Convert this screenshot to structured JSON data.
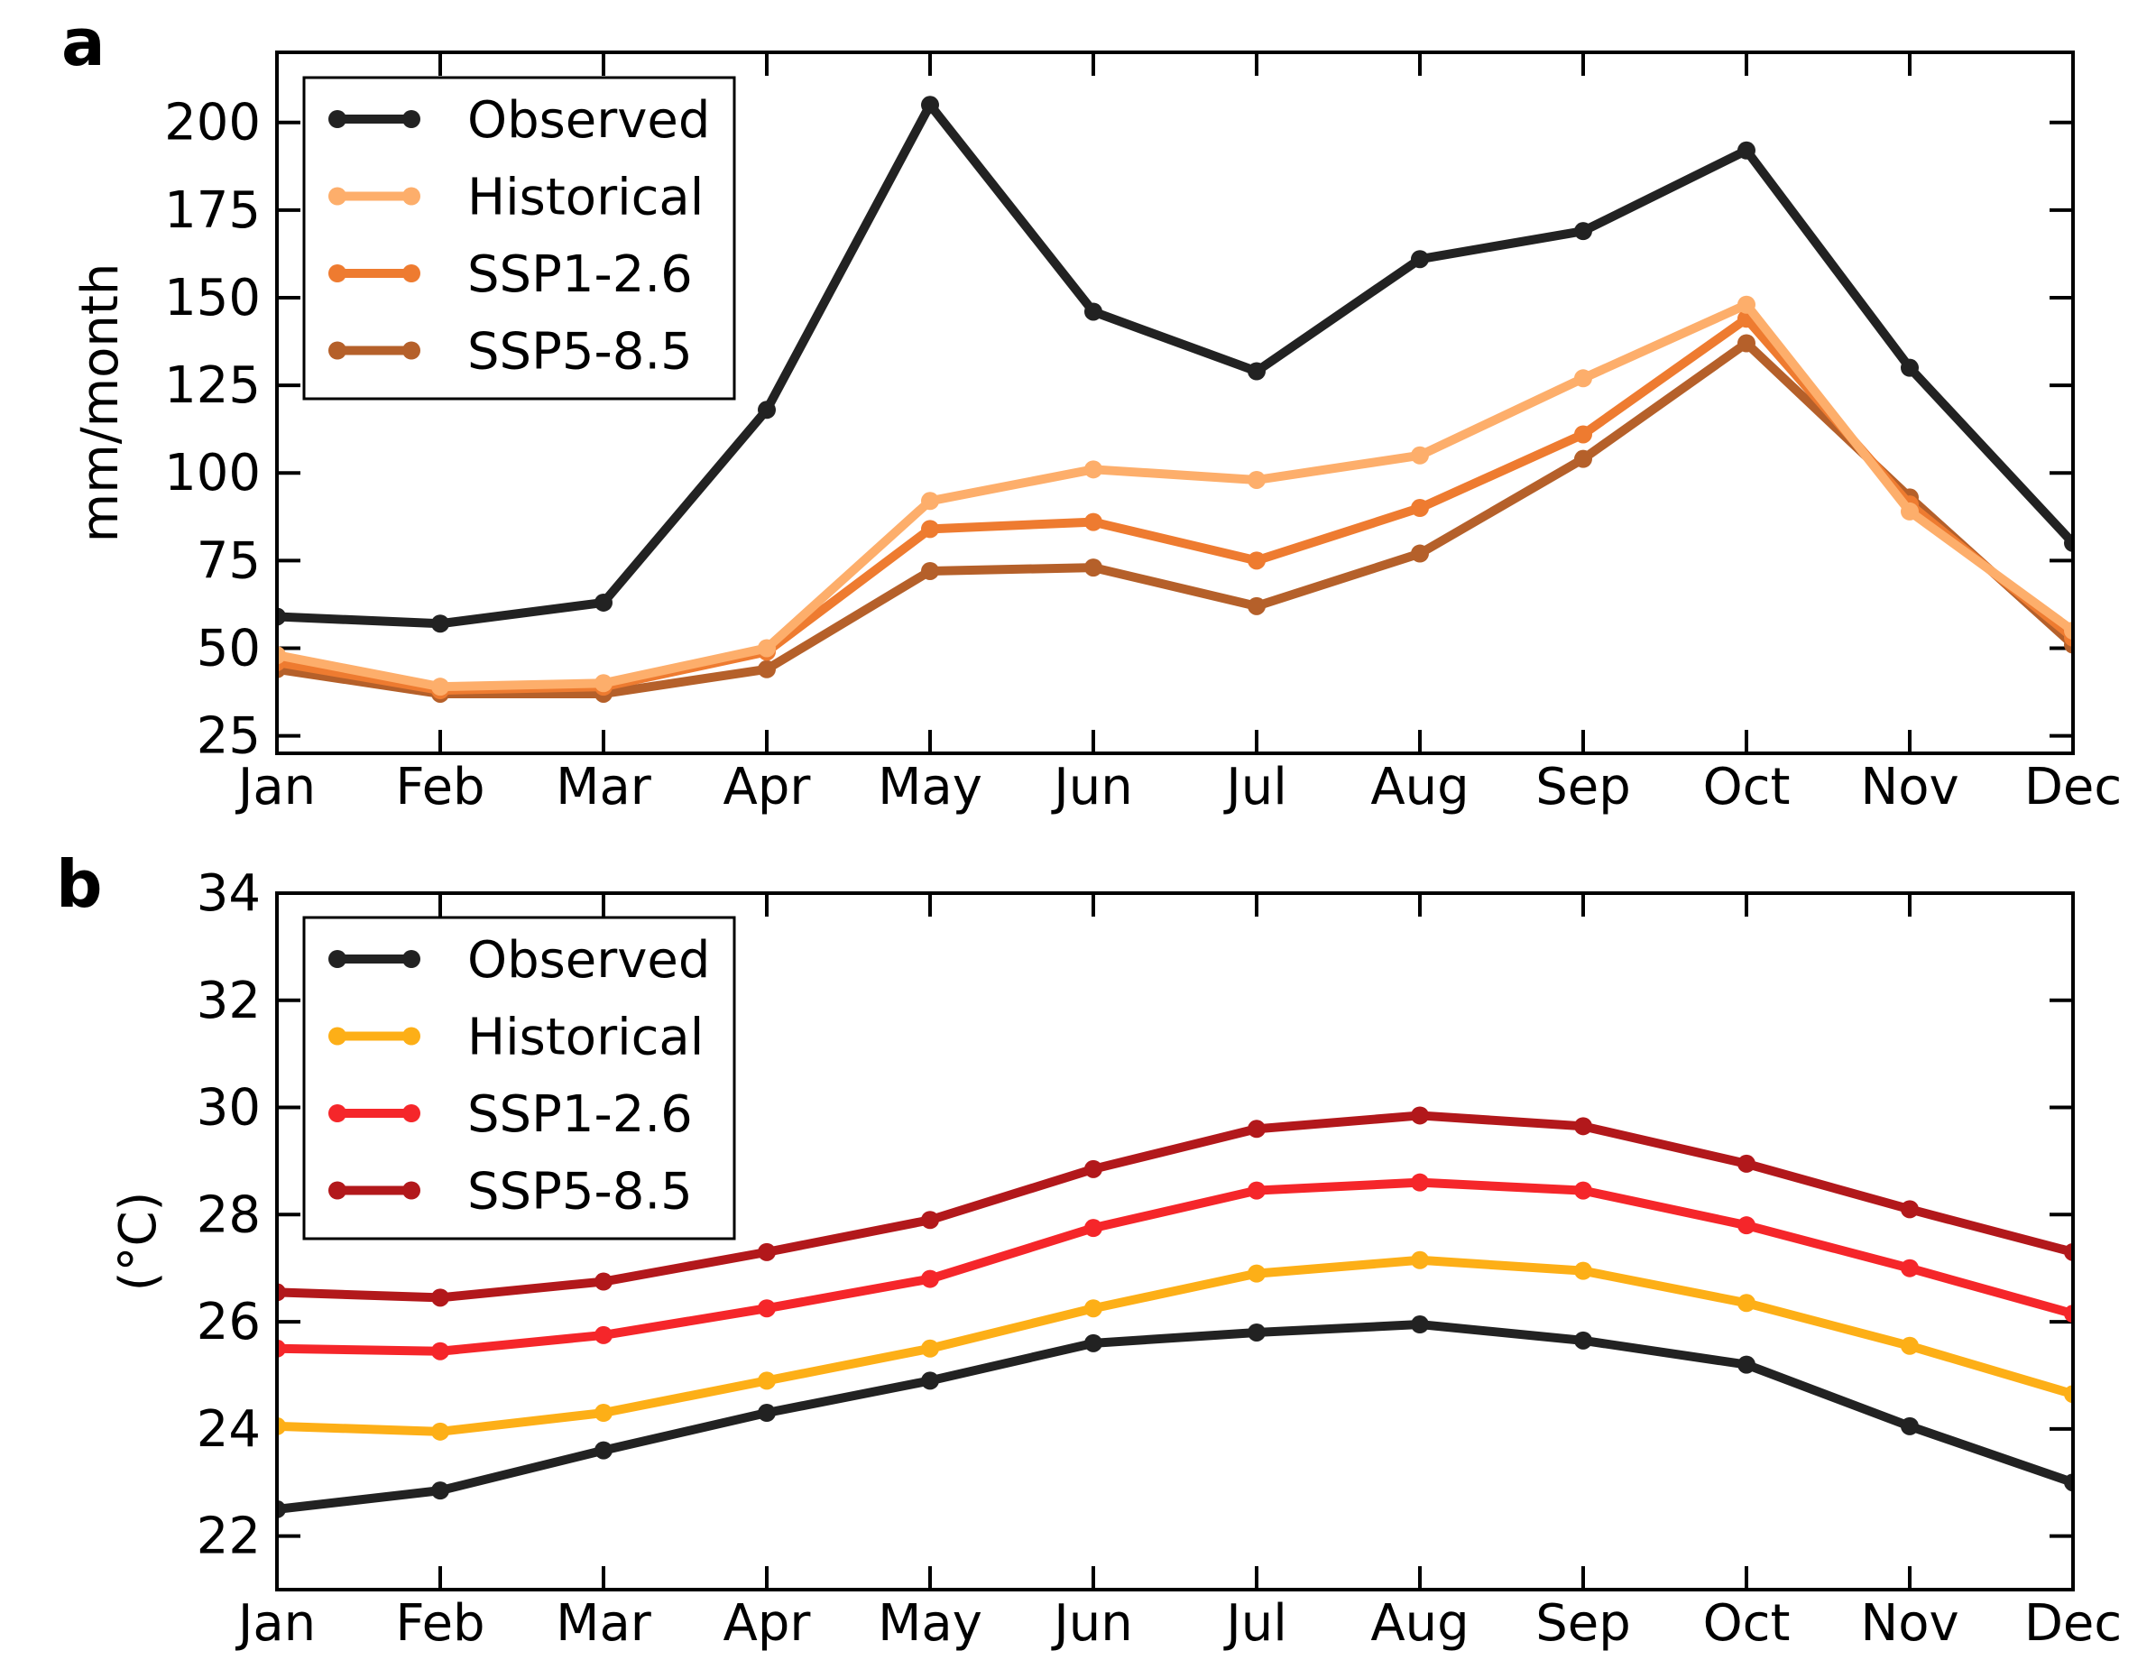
{
  "chart_data": [
    {
      "panel_label": "a",
      "type": "line",
      "title": "",
      "xlabel": "",
      "ylabel": "mm/month",
      "categories": [
        "Jan",
        "Feb",
        "Mar",
        "Apr",
        "May",
        "Jun",
        "Jul",
        "Aug",
        "Sep",
        "Oct",
        "Nov",
        "Dec"
      ],
      "ylim": [
        20,
        220
      ],
      "yticks": [
        25,
        50,
        75,
        100,
        125,
        150,
        175,
        200
      ],
      "ytick_labels": [
        "25",
        "50",
        "75",
        "100",
        "125",
        "150",
        "175",
        "200"
      ],
      "grid": false,
      "legend_position": "top-left",
      "series": [
        {
          "name": "Observed",
          "color": "#222222",
          "values": [
            59,
            57,
            63,
            118,
            205,
            146,
            129,
            161,
            169,
            192,
            130,
            80
          ]
        },
        {
          "name": "Historical",
          "color": "#FDAE6B",
          "values": [
            48,
            39,
            40,
            50,
            92,
            101,
            98,
            105,
            127,
            148,
            89,
            55
          ]
        },
        {
          "name": "SSP1-2.6",
          "color": "#EE7B30",
          "values": [
            46,
            38,
            39,
            49,
            84,
            86,
            75,
            90,
            111,
            144,
            91,
            53
          ]
        },
        {
          "name": "SSP5-8.5",
          "color": "#B5602A",
          "values": [
            44,
            37,
            37,
            44,
            72,
            73,
            62,
            77,
            104,
            137,
            93,
            51
          ]
        }
      ]
    },
    {
      "panel_label": "b",
      "type": "line",
      "title": "",
      "xlabel": "",
      "ylabel": "(°C)",
      "categories": [
        "Jan",
        "Feb",
        "Mar",
        "Apr",
        "May",
        "Jun",
        "Jul",
        "Aug",
        "Sep",
        "Oct",
        "Nov",
        "Dec"
      ],
      "ylim": [
        21,
        34
      ],
      "yticks": [
        22,
        24,
        26,
        28,
        30,
        32,
        34
      ],
      "ytick_labels": [
        "22",
        "24",
        "26",
        "28",
        "30",
        "32",
        "34"
      ],
      "grid": false,
      "legend_position": "top-left",
      "series": [
        {
          "name": "Observed",
          "color": "#222222",
          "values": [
            22.5,
            22.85,
            23.6,
            24.3,
            24.9,
            25.6,
            25.8,
            25.95,
            25.65,
            25.2,
            24.05,
            23.0
          ]
        },
        {
          "name": "Historical",
          "color": "#FDAF17",
          "values": [
            24.05,
            23.95,
            24.3,
            24.9,
            25.5,
            26.25,
            26.9,
            27.15,
            26.95,
            26.35,
            25.55,
            24.65
          ]
        },
        {
          "name": "SSP1-2.6",
          "color": "#F5262A",
          "values": [
            25.5,
            25.45,
            25.75,
            26.25,
            26.8,
            27.75,
            28.45,
            28.6,
            28.45,
            27.8,
            27.0,
            26.15
          ]
        },
        {
          "name": "SSP5-8.5",
          "color": "#B2181B",
          "values": [
            26.55,
            26.45,
            26.75,
            27.3,
            27.9,
            28.85,
            29.6,
            29.85,
            29.65,
            28.95,
            28.1,
            27.3
          ]
        }
      ]
    }
  ]
}
